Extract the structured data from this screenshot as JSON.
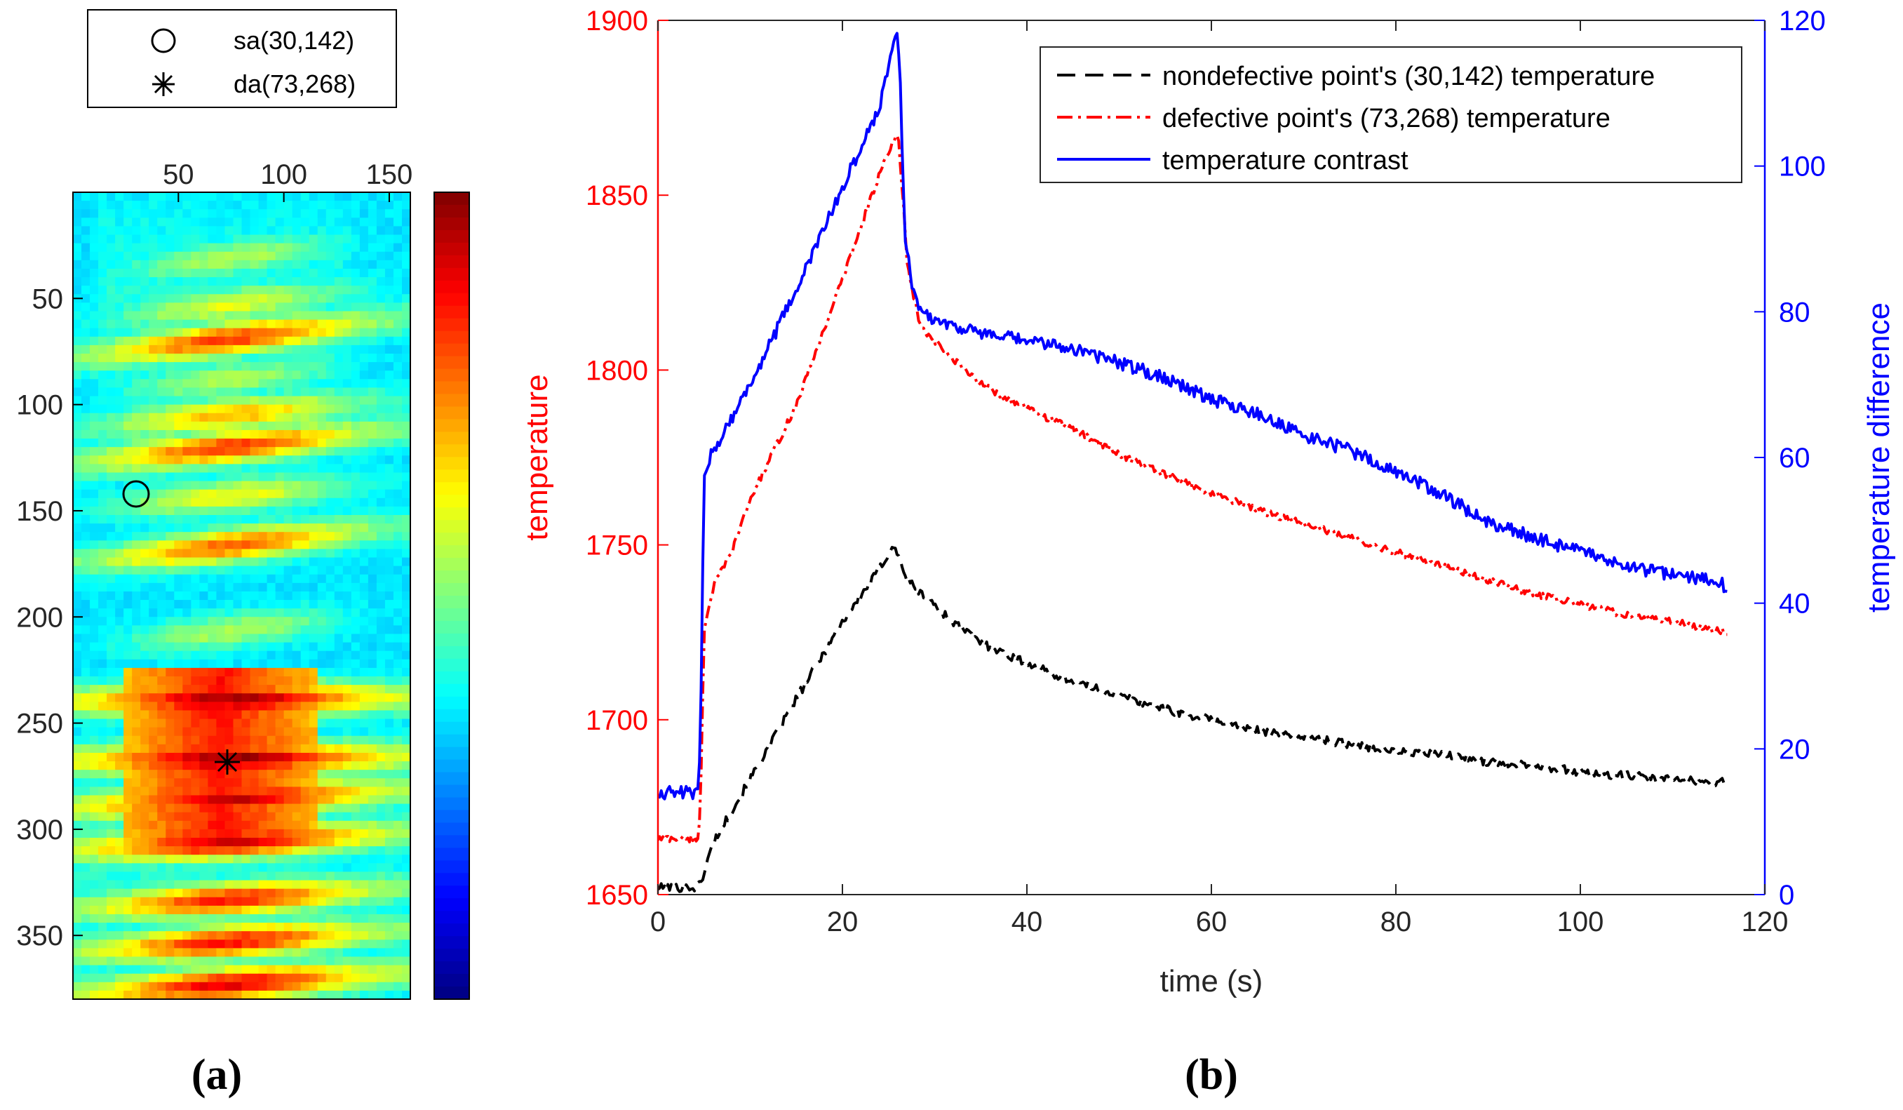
{
  "chart_data": [
    {
      "type": "heatmap",
      "panel_label": "(a)",
      "colormap": "jet",
      "x_ticks": [
        "50",
        "100",
        "150"
      ],
      "x_tick_values": [
        50,
        100,
        150
      ],
      "y_ticks": [
        "50",
        "100",
        "150",
        "200",
        "250",
        "300",
        "350"
      ],
      "y_tick_values": [
        50,
        100,
        150,
        200,
        250,
        300,
        350
      ],
      "xlim": [
        0,
        160
      ],
      "ylim": [
        0,
        380
      ],
      "markers": [
        {
          "label": "sa(30,142)",
          "symbol": "circle",
          "x": 30,
          "y": 142
        },
        {
          "label": "da(73,268)",
          "symbol": "asterisk",
          "x": 73,
          "y": 268
        }
      ],
      "bands": [
        {
          "y0": 0,
          "y1": 0,
          "peak": 0
        },
        {
          "y0": 40,
          "y1": 22,
          "peak": 0.55
        },
        {
          "y0": 62,
          "y1": 44,
          "peak": 0.6
        },
        {
          "y0": 78,
          "y1": 60,
          "peak": 0.82
        },
        {
          "y0": 96,
          "y1": 80,
          "peak": 0.55
        },
        {
          "y0": 112,
          "y1": 98,
          "peak": 0.7
        },
        {
          "y0": 128,
          "y1": 112,
          "peak": 0.82
        },
        {
          "y0": 150,
          "y1": 136,
          "peak": 0.62
        },
        {
          "y0": 175,
          "y1": 158,
          "peak": 0.78
        },
        {
          "y0": 215,
          "y1": 198,
          "peak": 0.55
        },
        {
          "y0": 240,
          "y1": 238,
          "peak": 0.97
        },
        {
          "y0": 268,
          "y1": 266,
          "peak": 0.98
        },
        {
          "y0": 290,
          "y1": 282,
          "peak": 0.93
        },
        {
          "y0": 310,
          "y1": 302,
          "peak": 0.92
        },
        {
          "y0": 338,
          "y1": 328,
          "peak": 0.85
        },
        {
          "y0": 358,
          "y1": 348,
          "peak": 0.86
        },
        {
          "y0": 378,
          "y1": 368,
          "peak": 0.9
        }
      ]
    },
    {
      "type": "line",
      "panel_label": "(b)",
      "xlabel": "time (s)",
      "ylabel_left": "temperature",
      "ylabel_right": "temperature difference",
      "xlim": [
        0,
        120
      ],
      "ylim_left": [
        1650,
        1900
      ],
      "ylim_right": [
        0,
        120
      ],
      "x_ticks": [
        "0",
        "20",
        "40",
        "60",
        "80",
        "100",
        "120"
      ],
      "x_tick_values": [
        0,
        20,
        40,
        60,
        80,
        100,
        120
      ],
      "y_left_ticks": [
        "1650",
        "1700",
        "1750",
        "1800",
        "1850",
        "1900"
      ],
      "y_left_tick_values": [
        1650,
        1700,
        1750,
        1800,
        1850,
        1900
      ],
      "y_right_ticks": [
        "0",
        "20",
        "40",
        "60",
        "80",
        "100",
        "120"
      ],
      "y_right_tick_values": [
        0,
        20,
        40,
        60,
        80,
        100,
        120
      ],
      "colors": {
        "left_axis": "#ff0000",
        "right_axis": "#0000ff"
      },
      "series": [
        {
          "name": "nondefective point's (30,142) temperature",
          "axis": "left",
          "color": "#000000",
          "style": "dashed",
          "noise": 1.2,
          "points": [
            [
              0,
              1652
            ],
            [
              4,
              1652
            ],
            [
              4.6,
              1653
            ],
            [
              6,
              1665
            ],
            [
              10,
              1683
            ],
            [
              15,
              1706
            ],
            [
              20,
              1728
            ],
            [
              24,
              1743
            ],
            [
              25.5,
              1750
            ],
            [
              26.5,
              1744
            ],
            [
              27,
              1740
            ],
            [
              29,
              1735
            ],
            [
              32,
              1728
            ],
            [
              35,
              1722
            ],
            [
              40,
              1716
            ],
            [
              45,
              1711
            ],
            [
              50,
              1707
            ],
            [
              55,
              1703
            ],
            [
              60,
              1700
            ],
            [
              65,
              1697
            ],
            [
              70,
              1695
            ],
            [
              75,
              1693
            ],
            [
              80,
              1691
            ],
            [
              85,
              1690
            ],
            [
              90,
              1688
            ],
            [
              95,
              1687
            ],
            [
              100,
              1685
            ],
            [
              105,
              1684
            ],
            [
              110,
              1683
            ],
            [
              116,
              1682
            ]
          ]
        },
        {
          "name": "defective point's (73,268) temperature",
          "axis": "left",
          "color": "#ff0000",
          "style": "dashdot",
          "noise": 1.0,
          "points": [
            [
              0,
              1666
            ],
            [
              4.3,
              1666
            ],
            [
              4.6,
              1674
            ],
            [
              5,
              1726
            ],
            [
              6,
              1738
            ],
            [
              8,
              1748
            ],
            [
              10,
              1763
            ],
            [
              15,
              1790
            ],
            [
              20,
              1826
            ],
            [
              24,
              1856
            ],
            [
              26,
              1868
            ],
            [
              26.6,
              1848
            ],
            [
              27,
              1830
            ],
            [
              28.5,
              1812
            ],
            [
              32,
              1803
            ],
            [
              35,
              1796
            ],
            [
              40,
              1789
            ],
            [
              45,
              1783
            ],
            [
              50,
              1776
            ],
            [
              55,
              1770
            ],
            [
              60,
              1765
            ],
            [
              65,
              1760
            ],
            [
              70,
              1756
            ],
            [
              75,
              1752
            ],
            [
              80,
              1748
            ],
            [
              85,
              1744
            ],
            [
              90,
              1740
            ],
            [
              95,
              1736
            ],
            [
              100,
              1733
            ],
            [
              105,
              1730
            ],
            [
              110,
              1728
            ],
            [
              116,
              1725
            ]
          ]
        },
        {
          "name": "temperature contrast",
          "axis": "right",
          "color": "#0000ff",
          "style": "solid",
          "noise": 0.9,
          "points": [
            [
              0,
              14
            ],
            [
              4.3,
              14
            ],
            [
              4.6,
              20
            ],
            [
              5,
              58
            ],
            [
              6,
              61
            ],
            [
              10,
              70
            ],
            [
              15,
              83
            ],
            [
              20,
              97
            ],
            [
              24,
              108
            ],
            [
              25.5,
              117
            ],
            [
              26,
              119
            ],
            [
              26.3,
              110
            ],
            [
              26.8,
              90
            ],
            [
              27.5,
              84
            ],
            [
              28.5,
              80
            ],
            [
              30,
              79
            ],
            [
              35,
              77
            ],
            [
              40,
              76
            ],
            [
              45,
              75
            ],
            [
              50,
              73
            ],
            [
              55,
              71
            ],
            [
              60,
              68
            ],
            [
              65,
              66
            ],
            [
              70,
              63
            ],
            [
              75,
              61
            ],
            [
              80,
              58
            ],
            [
              85,
              55
            ],
            [
              90,
              51
            ],
            [
              95,
              49
            ],
            [
              100,
              47
            ],
            [
              105,
              45
            ],
            [
              110,
              44
            ],
            [
              115,
              43
            ],
            [
              116,
              42
            ]
          ]
        }
      ]
    }
  ],
  "legend_a": {
    "entries": [
      {
        "symbol": "circle",
        "label": "sa(30,142)"
      },
      {
        "symbol": "asterisk",
        "label": "da(73,268)"
      }
    ]
  },
  "legend_b": {
    "placement": "top-right",
    "entries": [
      {
        "label": "nondefective point's (30,142) temperature",
        "color": "#000000",
        "style": "dashed"
      },
      {
        "label": "defective point's (73,268) temperature",
        "color": "#ff0000",
        "style": "dashdot"
      },
      {
        "label": "temperature contrast",
        "color": "#0000ff",
        "style": "solid"
      }
    ]
  }
}
